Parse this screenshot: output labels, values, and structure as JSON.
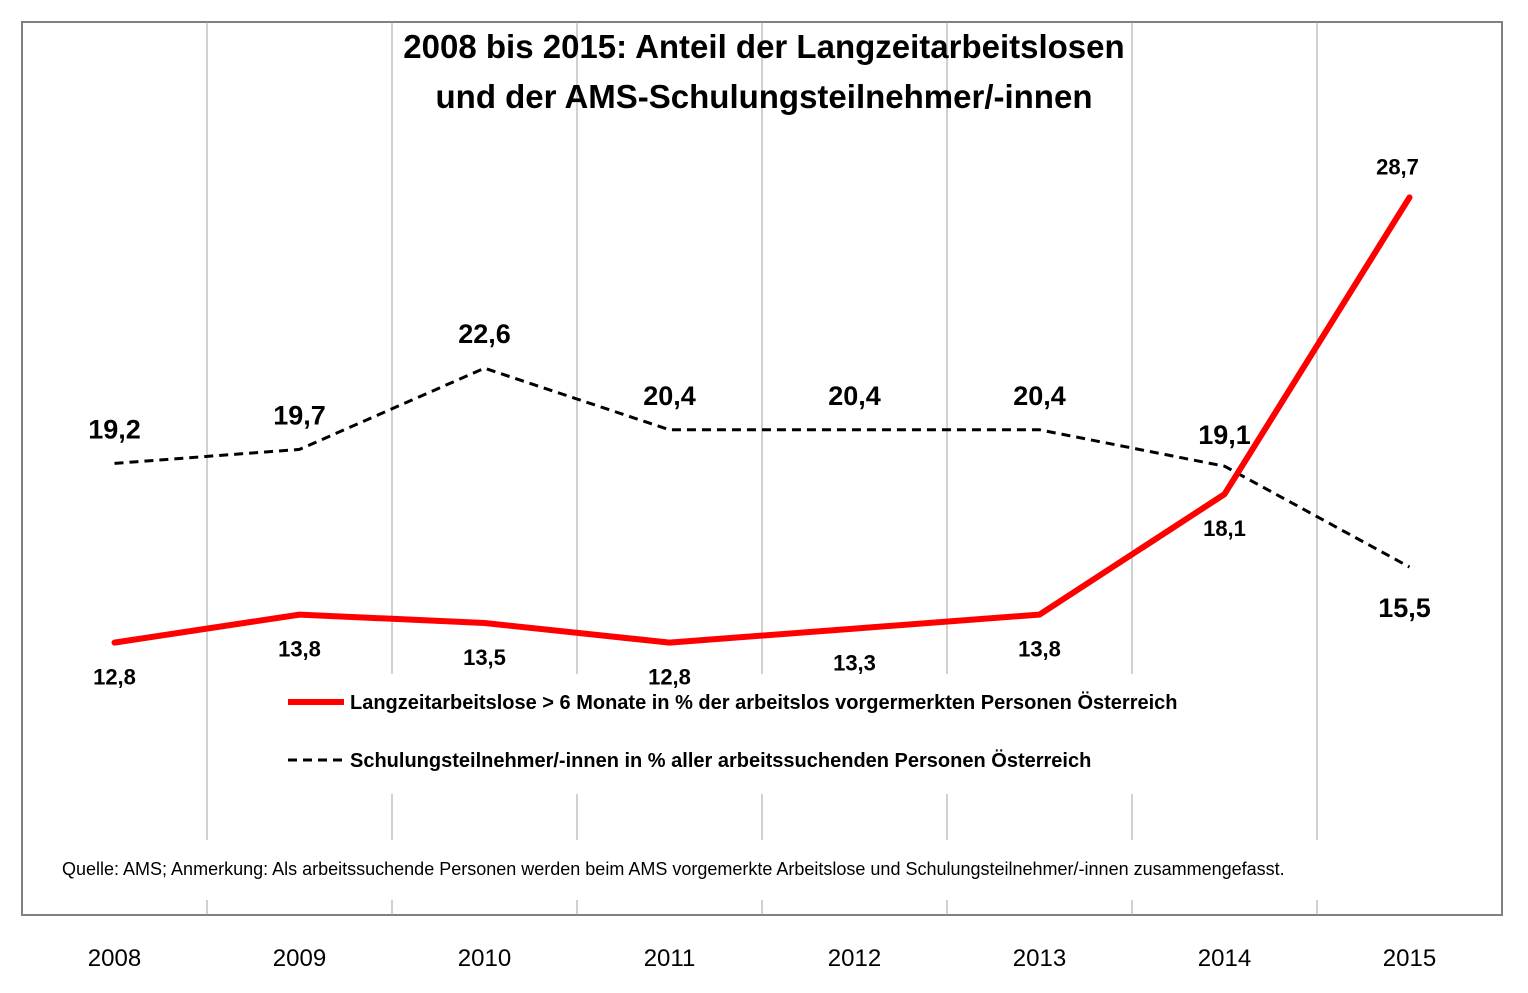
{
  "chart_data": {
    "type": "line",
    "title": [
      "2008 bis 2015: Anteil der Langzeitarbeitslosen",
      "und der AMS-Schulungsteilnehmer/-innen"
    ],
    "categories": [
      "2008",
      "2009",
      "2010",
      "2011",
      "2012",
      "2013",
      "2014",
      "2015"
    ],
    "series": [
      {
        "name": "Langzeitarbeitslose > 6 Monate in % der arbeitslos vorgermerkten Personen Österreich",
        "values": [
          12.8,
          13.8,
          13.5,
          12.8,
          13.3,
          13.8,
          18.1,
          28.7
        ],
        "labels": [
          "12,8",
          "13,8",
          "13,5",
          "12,8",
          "13,3",
          "13,8",
          "18,1",
          "28,7"
        ],
        "color": "#ff0000",
        "style": "solid"
      },
      {
        "name": "Schulungsteilnehmer/-innen in % aller arbeitssuchenden Personen Österreich",
        "values": [
          19.2,
          19.7,
          22.6,
          20.4,
          20.4,
          20.4,
          19.1,
          15.5
        ],
        "labels": [
          "19,2",
          "19,7",
          "22,6",
          "20,4",
          "20,4",
          "20,4",
          "19,1",
          "15,5"
        ],
        "color": "#000000",
        "style": "dashed"
      }
    ],
    "note": "Quelle: AMS; Anmerkung: Als arbeitssuchende Personen werden beim AMS vorgemerkte Arbeitslose und Schulungsteilnehmer/-innen zusammengefasst.",
    "xlabel": "",
    "ylabel": "",
    "ylim": [
      8,
      32
    ],
    "grid": "vertical",
    "legend": "bottom-center"
  }
}
